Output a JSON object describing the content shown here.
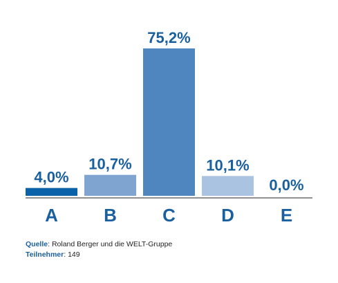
{
  "chart_data": {
    "type": "bar",
    "categories": [
      "A",
      "B",
      "C",
      "D",
      "E"
    ],
    "values": [
      4.0,
      10.7,
      75.2,
      10.1,
      0.0
    ],
    "value_labels": [
      "4,0%",
      "10,7%",
      "75,2%",
      "10,1%",
      "0,0%"
    ],
    "ylim": [
      0,
      80
    ],
    "grid": false,
    "bar_colors": [
      "#0a63a8",
      "#7ea4cf",
      "#4f86c0",
      "#a9c3e0",
      "#c9d9ec"
    ],
    "axis_color": "#222222",
    "label_color": "#1a5f9e"
  },
  "footer": {
    "source_label": "Quelle",
    "source_text": ": Roland Berger und die WELT-Gruppe",
    "participants_label": "Teilnehmer",
    "participants_text": ": 149"
  }
}
